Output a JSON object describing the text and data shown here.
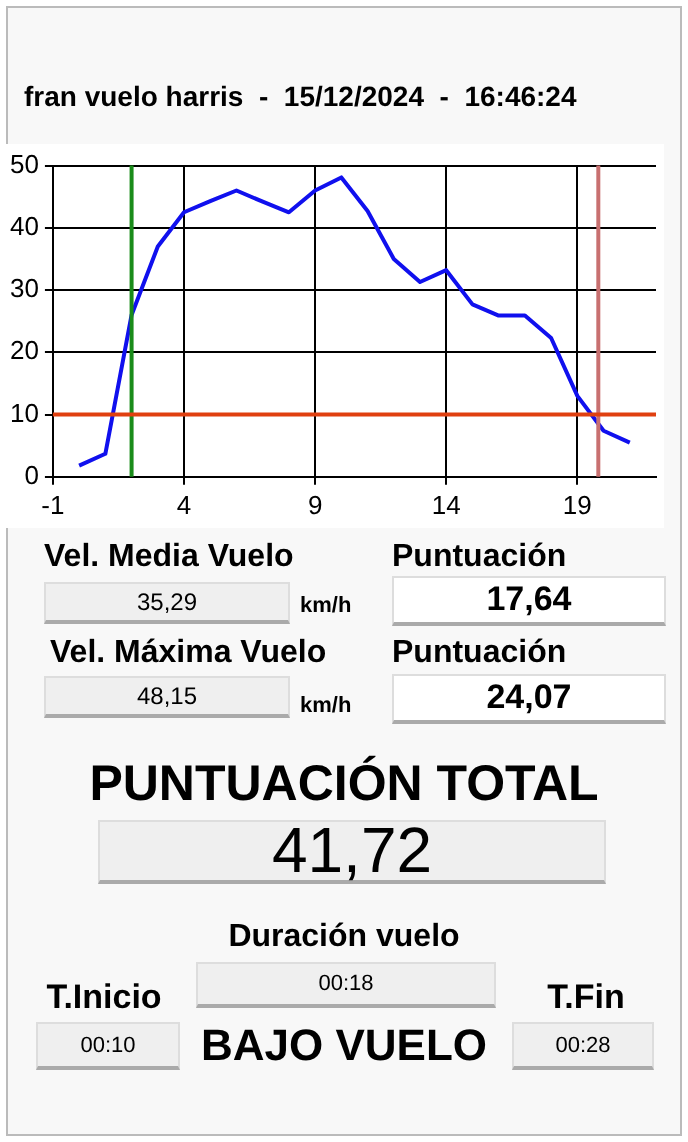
{
  "chart_data": [
    {
      "type": "line",
      "title": "fran vuelo harris  -  15/12/2024  -  16:46:24",
      "x": [
        0,
        1,
        2,
        3,
        4,
        5,
        6,
        7,
        8,
        9,
        10,
        11,
        12,
        13,
        14,
        15,
        16,
        17,
        18,
        19,
        20,
        21
      ],
      "series": [
        {
          "color": "#1010ee",
          "values": [
            1.8,
            3.7,
            26,
            37,
            42.5,
            44.3,
            46,
            44.2,
            42.5,
            46,
            48.1,
            42.7,
            35,
            31.3,
            33.2,
            27.7,
            25.9,
            25.9,
            22.3,
            13,
            7.4,
            5.5
          ]
        }
      ],
      "xlim": [
        -1,
        22
      ],
      "xticks": [
        -1,
        4,
        9,
        14,
        19
      ],
      "ylim": [
        0,
        50
      ],
      "yticks": [
        0,
        10,
        20,
        30,
        40,
        50
      ],
      "grid": true,
      "marker": "none",
      "line_style": "solid",
      "ref_lines": [
        {
          "axis": "x",
          "value": 2,
          "color": "#1a8c1a"
        },
        {
          "axis": "x",
          "value": 19.8,
          "color": "#c87070"
        },
        {
          "axis": "y",
          "value": 10,
          "color": "#e04010"
        }
      ]
    },
    {
      "type": "other",
      "annotations": [
        "Vel. Media Vuelo",
        "35,29",
        "km/h",
        "Puntuación",
        "17,64",
        "Vel. Máxima Vuelo",
        "48,15",
        "km/h",
        "Puntuación",
        "24,07",
        "PUNTUACIÓN TOTAL",
        "41,72",
        "Duración vuelo",
        "00:18",
        "T.Inicio",
        "00:10",
        "BAJO VUELO",
        "T.Fin",
        "00:28"
      ]
    }
  ]
}
